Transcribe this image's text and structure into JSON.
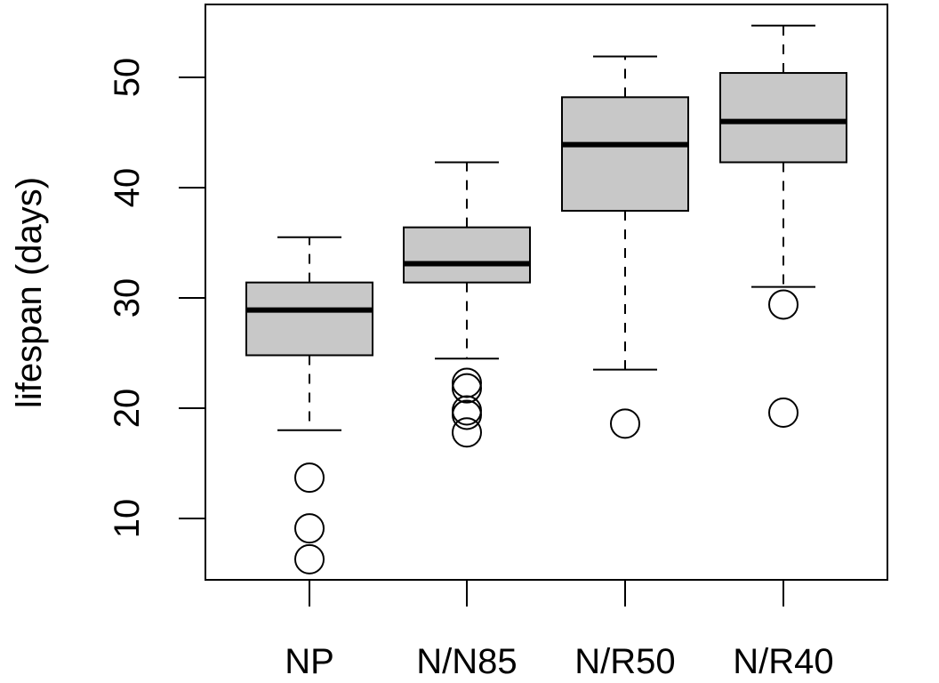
{
  "chart_data": {
    "type": "boxplot",
    "title": "",
    "xlabel": "",
    "ylabel": "lifespan (days)",
    "ylim": [
      4.5,
      57
    ],
    "yticks": [
      10,
      20,
      30,
      40,
      50
    ],
    "ytick_labels": [
      "10",
      "20",
      "30",
      "40",
      "50"
    ],
    "grid": false,
    "categories": [
      "NP",
      "N/N85",
      "N/R50",
      "N/R40"
    ],
    "box_fill": "#c8c8c8",
    "boxes": [
      {
        "name": "NP",
        "whisker_low": 18.0,
        "q1": 24.8,
        "median": 28.9,
        "q3": 31.4,
        "whisker_high": 35.5,
        "outliers": [
          13.7,
          9.1,
          6.3
        ]
      },
      {
        "name": "N/N85",
        "whisker_low": 24.5,
        "q1": 31.4,
        "median": 33.1,
        "q3": 36.4,
        "whisker_high": 42.3,
        "outliers": [
          22.3,
          21.8,
          19.8,
          19.4,
          17.8
        ]
      },
      {
        "name": "N/R50",
        "whisker_low": 23.5,
        "q1": 37.9,
        "median": 43.9,
        "q3": 48.2,
        "whisker_high": 51.9,
        "outliers": [
          18.6
        ]
      },
      {
        "name": "N/R40",
        "whisker_low": 31.0,
        "q1": 42.3,
        "median": 46.0,
        "q3": 50.4,
        "whisker_high": 54.7,
        "outliers": [
          29.4,
          19.6
        ]
      }
    ]
  }
}
